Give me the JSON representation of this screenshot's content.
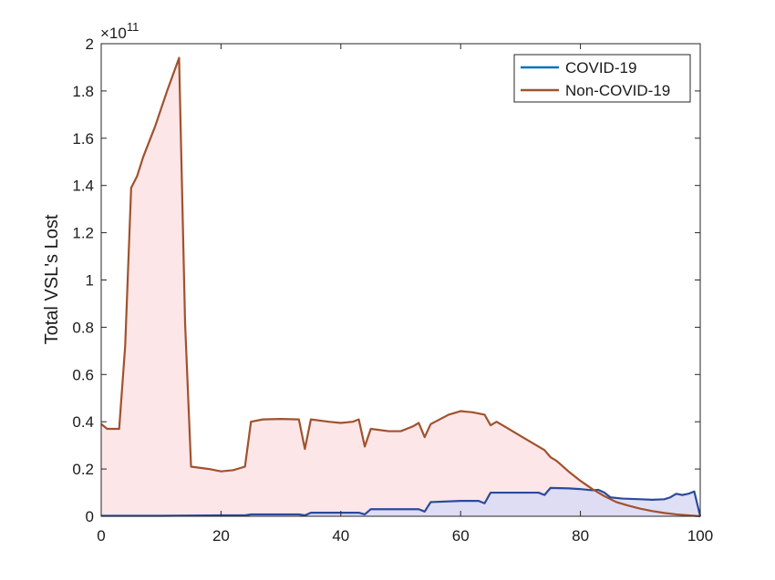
{
  "chart_data": {
    "type": "area",
    "ylabel": "Total VSL's Lost",
    "xlabel": "",
    "y_exponent_label": "×10",
    "y_exponent_power": "11",
    "xlim": [
      0,
      100
    ],
    "ylim": [
      0,
      2
    ],
    "y_scale_multiplier": 100000000000,
    "x_ticks": [
      0,
      20,
      40,
      60,
      80,
      100
    ],
    "y_ticks": [
      0,
      0.2,
      0.4,
      0.6,
      0.8,
      1,
      1.2,
      1.4,
      1.6,
      1.8,
      2
    ],
    "y_tick_labels": [
      "0",
      "0.2",
      "0.4",
      "0.6",
      "0.8",
      "1",
      "1.2",
      "1.4",
      "1.6",
      "1.8",
      "2"
    ],
    "x_tick_labels": [
      "0",
      "20",
      "40",
      "60",
      "80",
      "100"
    ],
    "legend_position": "top-right",
    "grid": false,
    "series": [
      {
        "name": "COVID-19",
        "color": "#0072BD",
        "fill": "#DCDCF5",
        "points": [
          [
            0,
            0.002
          ],
          [
            5,
            0.002
          ],
          [
            10,
            0.002
          ],
          [
            15,
            0.003
          ],
          [
            20,
            0.004
          ],
          [
            24,
            0.004
          ],
          [
            25,
            0.008
          ],
          [
            30,
            0.008
          ],
          [
            33,
            0.008
          ],
          [
            34,
            0.004
          ],
          [
            35,
            0.015
          ],
          [
            40,
            0.015
          ],
          [
            43,
            0.015
          ],
          [
            44,
            0.008
          ],
          [
            45,
            0.03
          ],
          [
            50,
            0.03
          ],
          [
            53,
            0.03
          ],
          [
            54,
            0.02
          ],
          [
            55,
            0.06
          ],
          [
            60,
            0.065
          ],
          [
            63,
            0.065
          ],
          [
            64,
            0.055
          ],
          [
            65,
            0.1
          ],
          [
            70,
            0.1
          ],
          [
            73,
            0.1
          ],
          [
            74,
            0.09
          ],
          [
            75,
            0.12
          ],
          [
            78,
            0.118
          ],
          [
            80,
            0.115
          ],
          [
            82,
            0.11
          ],
          [
            83,
            0.112
          ],
          [
            84,
            0.1
          ],
          [
            85,
            0.08
          ],
          [
            87,
            0.075
          ],
          [
            90,
            0.072
          ],
          [
            92,
            0.07
          ],
          [
            94,
            0.072
          ],
          [
            95,
            0.08
          ],
          [
            96,
            0.095
          ],
          [
            97,
            0.09
          ],
          [
            98,
            0.095
          ],
          [
            99,
            0.105
          ],
          [
            100,
            0.0
          ]
        ]
      },
      {
        "name": "Non-COVID-19",
        "color": "#A0522D",
        "fill": "#FDE2E4",
        "points": [
          [
            0,
            0.39
          ],
          [
            1,
            0.37
          ],
          [
            3,
            0.37
          ],
          [
            4,
            0.72
          ],
          [
            5,
            1.39
          ],
          [
            6,
            1.44
          ],
          [
            7,
            1.52
          ],
          [
            9,
            1.65
          ],
          [
            11,
            1.8
          ],
          [
            13,
            1.94
          ],
          [
            14,
            0.82
          ],
          [
            15,
            0.21
          ],
          [
            18,
            0.2
          ],
          [
            20,
            0.19
          ],
          [
            22,
            0.195
          ],
          [
            24,
            0.21
          ],
          [
            25,
            0.4
          ],
          [
            27,
            0.41
          ],
          [
            30,
            0.412
          ],
          [
            33,
            0.41
          ],
          [
            34,
            0.285
          ],
          [
            35,
            0.41
          ],
          [
            38,
            0.4
          ],
          [
            40,
            0.395
          ],
          [
            42,
            0.4
          ],
          [
            43,
            0.41
          ],
          [
            44,
            0.295
          ],
          [
            45,
            0.37
          ],
          [
            48,
            0.36
          ],
          [
            50,
            0.36
          ],
          [
            52,
            0.38
          ],
          [
            53,
            0.395
          ],
          [
            54,
            0.335
          ],
          [
            55,
            0.39
          ],
          [
            58,
            0.43
          ],
          [
            60,
            0.445
          ],
          [
            62,
            0.44
          ],
          [
            64,
            0.43
          ],
          [
            65,
            0.385
          ],
          [
            66,
            0.4
          ],
          [
            68,
            0.37
          ],
          [
            70,
            0.34
          ],
          [
            72,
            0.31
          ],
          [
            74,
            0.28
          ],
          [
            75,
            0.25
          ],
          [
            76,
            0.235
          ],
          [
            78,
            0.19
          ],
          [
            80,
            0.15
          ],
          [
            82,
            0.115
          ],
          [
            84,
            0.085
          ],
          [
            86,
            0.06
          ],
          [
            88,
            0.045
          ],
          [
            90,
            0.032
          ],
          [
            92,
            0.022
          ],
          [
            94,
            0.014
          ],
          [
            96,
            0.008
          ],
          [
            98,
            0.004
          ],
          [
            100,
            0.0
          ]
        ]
      }
    ]
  }
}
